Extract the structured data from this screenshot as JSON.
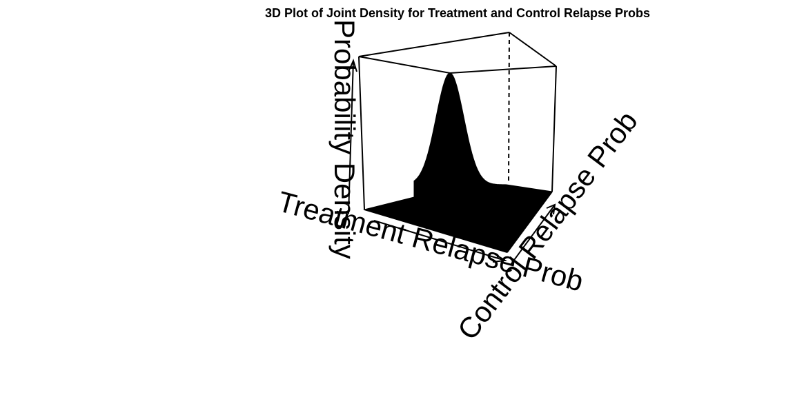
{
  "chart_data": {
    "type": "surface3d",
    "title": "3D Plot of Joint Density for Treatment and Control Relapse Probs",
    "xlabel": "Treatment Relapse Prob",
    "ylabel": "Control Relapse Prob",
    "zlabel": "Probability Density",
    "surface": {
      "peak_x": 0.35,
      "peak_y": 0.45,
      "spread": 0.1,
      "fill_color": "#000000"
    },
    "box": true,
    "grid": false
  }
}
